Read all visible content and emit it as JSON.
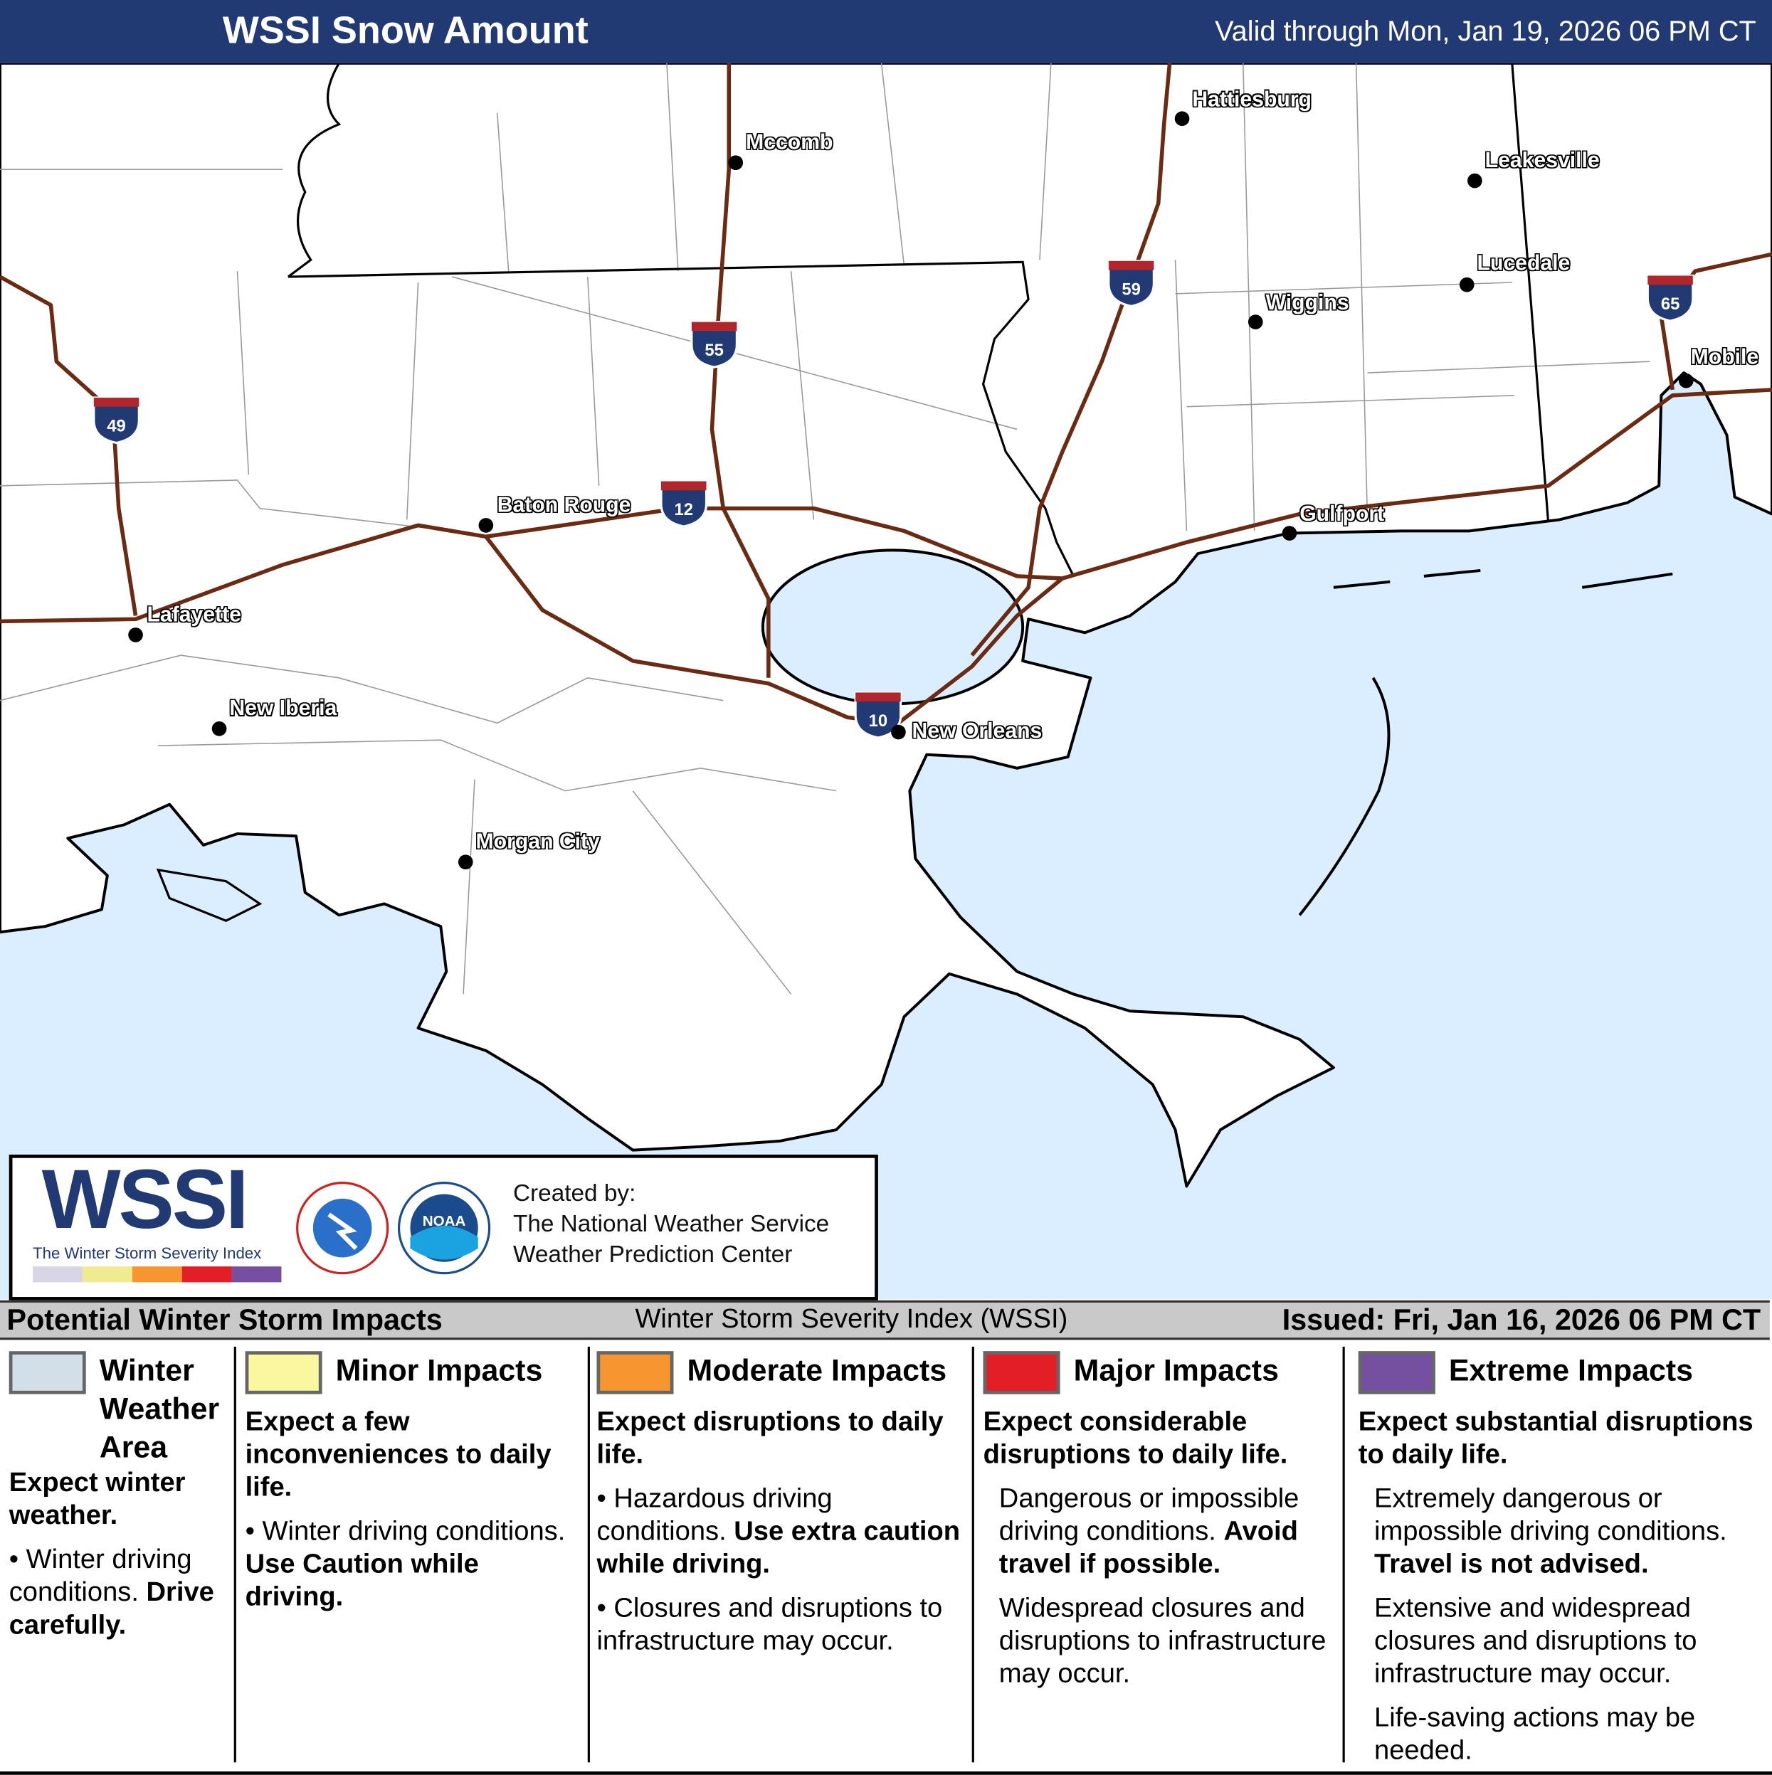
{
  "header": {
    "title": "WSSI Snow Amount",
    "valid": "Valid through Mon, Jan 19, 2026 06 PM CT"
  },
  "map": {
    "colors": {
      "water": "#dbeeff",
      "land": "#ffffff",
      "interstate": "#6b2a12",
      "boundary": "#000000",
      "header": "#213a74"
    },
    "cities": [
      {
        "name": "Hattiesburg"
      },
      {
        "name": "Mccomb"
      },
      {
        "name": "Leakesville"
      },
      {
        "name": "Lucedale"
      },
      {
        "name": "Wiggins"
      },
      {
        "name": "Mobile"
      },
      {
        "name": "Baton Rouge"
      },
      {
        "name": "Gulfport"
      },
      {
        "name": "Lafayette"
      },
      {
        "name": "New Iberia"
      },
      {
        "name": "New Orleans"
      },
      {
        "name": "Morgan City"
      }
    ],
    "interstates": [
      "49",
      "55",
      "12",
      "59",
      "65",
      "10"
    ],
    "snow_amount": "none"
  },
  "logo": {
    "wordmark": "WSSI",
    "tagline": "The Winter Storm Severity Index",
    "nws": "NATIONAL WEATHER SERVICE",
    "noaa": "NOAA",
    "created_by": "Created by:",
    "org1": "The National Weather Service",
    "org2": "Weather Prediction Center"
  },
  "legend": {
    "title": "Potential Winter Storm Impacts",
    "index": "Winter Storm Severity Index (WSSI)",
    "issued": "Issued: Fri, Jan 16, 2026 06 PM CT",
    "cats": [
      {
        "name": "Winter Weather Area",
        "color": "#d3dfe8",
        "head": "Expect winter weather.",
        "b1": "Winter driving conditions.",
        "b1b": "Drive carefully."
      },
      {
        "name": "Minor Impacts",
        "color": "#fbf6a0",
        "head": "Expect a few inconveniences to daily life.",
        "b1": "Winter driving conditions.",
        "b1b": "Use Caution while driving."
      },
      {
        "name": "Moderate Impacts",
        "color": "#f7962f",
        "head": "Expect disruptions to daily life.",
        "b1": "Hazardous driving conditions.",
        "b1b": "Use extra caution while driving.",
        "b2": "Closures and disruptions to infrastructure may occur."
      },
      {
        "name": "Major Impacts",
        "color": "#e41e26",
        "head": "Expect considerable disruptions to daily life.",
        "b1": "Dangerous or impossible driving conditions.",
        "b1b": "Avoid travel if possible.",
        "b2": "Widespread closures and disruptions to infrastructure may occur."
      },
      {
        "name": "Extreme Impacts",
        "color": "#7650a0",
        "head": "Expect substantial disruptions to daily life.",
        "b1": "Extremely dangerous or impossible driving conditions.",
        "b1b": "Travel is not advised.",
        "b2": "Extensive and widespread closures and disruptions to infrastructure may occur.",
        "b3": "Life-saving actions may be needed."
      }
    ]
  }
}
